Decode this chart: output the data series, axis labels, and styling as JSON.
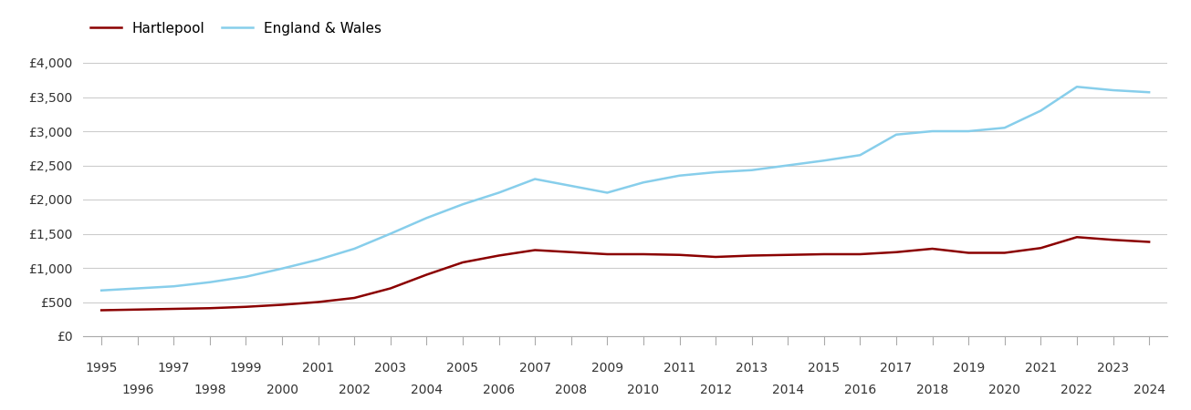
{
  "years": [
    1995,
    1996,
    1997,
    1998,
    1999,
    2000,
    2001,
    2002,
    2003,
    2004,
    2005,
    2006,
    2007,
    2008,
    2009,
    2010,
    2011,
    2012,
    2013,
    2014,
    2015,
    2016,
    2017,
    2018,
    2019,
    2020,
    2021,
    2022,
    2023,
    2024
  ],
  "hartlepool": [
    380,
    390,
    400,
    410,
    430,
    460,
    500,
    560,
    700,
    900,
    1080,
    1180,
    1260,
    1230,
    1200,
    1200,
    1190,
    1160,
    1180,
    1190,
    1200,
    1200,
    1230,
    1280,
    1220,
    1220,
    1290,
    1450,
    1410,
    1380
  ],
  "england_wales": [
    670,
    700,
    730,
    790,
    870,
    990,
    1120,
    1280,
    1500,
    1730,
    1930,
    2100,
    2300,
    2200,
    2100,
    2250,
    2350,
    2400,
    2430,
    2500,
    2570,
    2650,
    2950,
    3000,
    3000,
    3050,
    3300,
    3650,
    3600,
    3570
  ],
  "hartlepool_color": "#8b0000",
  "england_wales_color": "#87CEEB",
  "background_color": "#ffffff",
  "grid_color": "#cccccc",
  "ytick_labels": [
    "£0",
    "£500",
    "£1,000",
    "£1,500",
    "£2,000",
    "£2,500",
    "£3,000",
    "£3,500",
    "£4,000"
  ],
  "ytick_values": [
    0,
    500,
    1000,
    1500,
    2000,
    2500,
    3000,
    3500,
    4000
  ],
  "ylim": [
    0,
    4200
  ],
  "xlim_min": 1994.5,
  "xlim_max": 2024.5,
  "legend_hartlepool": "Hartlepool",
  "legend_england_wales": "England & Wales",
  "line_width": 1.8,
  "tick_fontsize": 10,
  "legend_fontsize": 11
}
